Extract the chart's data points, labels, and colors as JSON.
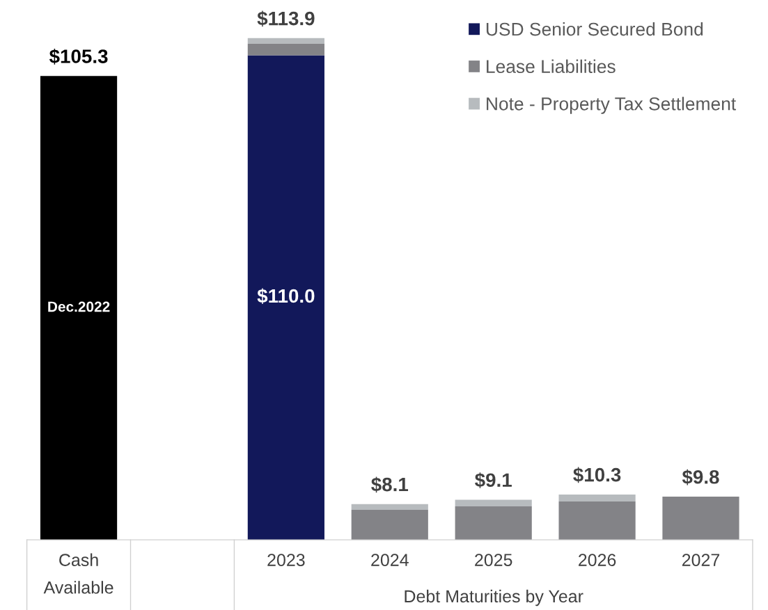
{
  "chart_data": {
    "type": "bar",
    "stacked": true,
    "xlabel": "Debt Maturities by Year",
    "categories": [
      "Cash Available",
      null,
      "2023",
      "2024",
      "2025",
      "2026",
      "2027"
    ],
    "series": [
      {
        "color": "#000000",
        "values": [
          105.3,
          null,
          null,
          null,
          null,
          null,
          null
        ],
        "value_labels": [
          "Dec.2022",
          null,
          null,
          null,
          null,
          null,
          null
        ]
      },
      {
        "name": "USD Senior Secured Bond",
        "color": "#12185a",
        "values": [
          null,
          null,
          110.0,
          null,
          null,
          null,
          null
        ],
        "value_labels": [
          null,
          null,
          "$110.0",
          null,
          null,
          null,
          null
        ]
      },
      {
        "name": "Lease Liabilities",
        "color": "#838387",
        "values": [
          null,
          null,
          2.6,
          6.8,
          7.6,
          8.7,
          9.8
        ]
      },
      {
        "name": "Note - Property Tax Settlement",
        "color": "#b7bbbe",
        "values": [
          null,
          null,
          1.3,
          1.3,
          1.5,
          1.6,
          null
        ]
      }
    ],
    "totals": [
      "$105.3",
      null,
      "$113.9",
      "$8.1",
      "$9.1",
      "$10.3",
      "$9.8"
    ],
    "tick_labels": "x",
    "legend": "top right",
    "grid": false
  }
}
